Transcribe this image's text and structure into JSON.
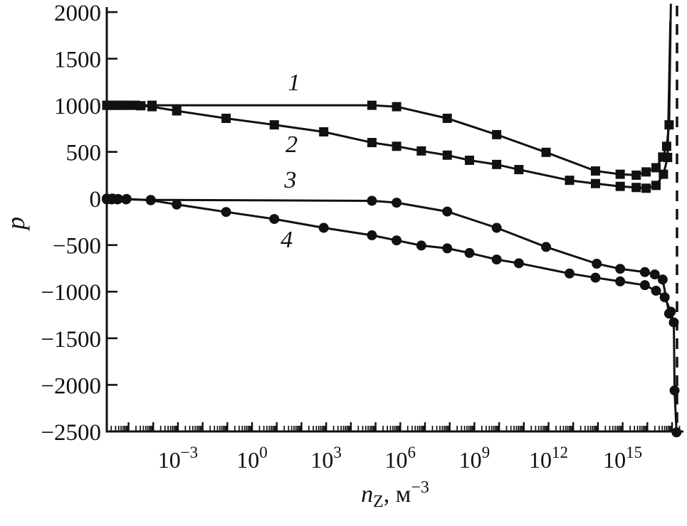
{
  "figure": {
    "ylabel": "p",
    "xlabel": {
      "variable": "n",
      "subscript": "Z",
      "unit_prefix": ", м",
      "unit_exponent": "−3"
    },
    "ink_color": "#111111",
    "background_color": "#ffffff"
  },
  "chart_data": {
    "type": "line",
    "title": "",
    "x_scale": "log10",
    "grid": "off",
    "legend": "none (curves labeled inline 1-4)",
    "x_axis": {
      "label": "n_Z, м^−3",
      "log_range": [
        -5.88,
        17.46
      ],
      "labeled_exponents": [
        -3,
        0,
        3,
        6,
        9,
        12,
        15
      ],
      "minor_ticks": "log decades with 2-9 subdivisions"
    },
    "y_axis": {
      "label": "p",
      "range": [
        -2500,
        2000
      ],
      "ticks": [
        2000,
        1500,
        1000,
        500,
        0,
        -500,
        -1000,
        -1500,
        -2000,
        -2500
      ]
    },
    "series": [
      {
        "label": "1",
        "marker": "square",
        "points_logx_y_marker": [
          [
            -5.88,
            1000,
            1
          ],
          [
            -5.68,
            1000,
            1
          ],
          [
            -5.45,
            1000,
            1
          ],
          [
            -5.12,
            1000,
            1
          ],
          [
            -4.72,
            1000,
            1
          ],
          [
            -4.05,
            1000,
            1
          ],
          [
            4.85,
            1000,
            1
          ],
          [
            5.85,
            985,
            1
          ],
          [
            7.9,
            860,
            1
          ],
          [
            9.9,
            685,
            1
          ],
          [
            11.9,
            495,
            1
          ],
          [
            13.9,
            295,
            1
          ],
          [
            14.9,
            260,
            1
          ],
          [
            15.55,
            250,
            1
          ],
          [
            15.95,
            285,
            1
          ],
          [
            16.35,
            330,
            1
          ],
          [
            16.62,
            445,
            1
          ],
          [
            16.78,
            560,
            1
          ],
          [
            16.88,
            790,
            1
          ],
          [
            16.95,
            2080,
            0
          ]
        ]
      },
      {
        "label": "2",
        "marker": "square",
        "points_logx_y_marker": [
          [
            -5.88,
            1000,
            1
          ],
          [
            -5.58,
            1000,
            1
          ],
          [
            -5.28,
            1000,
            1
          ],
          [
            -4.95,
            1000,
            1
          ],
          [
            -4.5,
            995,
            1
          ],
          [
            -4.05,
            985,
            1
          ],
          [
            -3.05,
            940,
            1
          ],
          [
            -1.05,
            860,
            1
          ],
          [
            0.9,
            790,
            1
          ],
          [
            2.9,
            715,
            1
          ],
          [
            4.85,
            600,
            1
          ],
          [
            5.85,
            560,
            1
          ],
          [
            6.85,
            510,
            1
          ],
          [
            7.9,
            465,
            1
          ],
          [
            8.8,
            410,
            1
          ],
          [
            9.9,
            365,
            1
          ],
          [
            10.8,
            310,
            1
          ],
          [
            12.85,
            195,
            1
          ],
          [
            13.9,
            160,
            1
          ],
          [
            14.9,
            130,
            1
          ],
          [
            15.55,
            118,
            1
          ],
          [
            15.95,
            110,
            1
          ],
          [
            16.35,
            140,
            1
          ],
          [
            16.65,
            260,
            1
          ],
          [
            16.82,
            440,
            1
          ],
          [
            16.93,
            1900,
            0
          ]
        ]
      },
      {
        "label": "3",
        "marker": "circle",
        "points_logx_y_marker": [
          [
            -5.88,
            -10,
            1
          ],
          [
            -5.68,
            -10,
            1
          ],
          [
            -5.45,
            -10,
            1
          ],
          [
            -5.1,
            -10,
            1
          ],
          [
            -4.1,
            -15,
            1
          ],
          [
            4.85,
            -25,
            1
          ],
          [
            5.85,
            -45,
            1
          ],
          [
            7.9,
            -140,
            1
          ],
          [
            9.9,
            -315,
            1
          ],
          [
            11.9,
            -520,
            1
          ],
          [
            13.95,
            -700,
            1
          ],
          [
            14.9,
            -755,
            1
          ],
          [
            15.9,
            -790,
            1
          ],
          [
            16.3,
            -815,
            1
          ],
          [
            16.62,
            -870,
            1
          ],
          [
            16.88,
            -1235,
            1
          ],
          [
            17.02,
            -1325,
            0
          ]
        ]
      },
      {
        "label": "4",
        "marker": "circle",
        "points_logx_y_marker": [
          [
            -5.88,
            0,
            1
          ],
          [
            -5.65,
            0,
            1
          ],
          [
            -5.42,
            -5,
            1
          ],
          [
            -5.08,
            -5,
            1
          ],
          [
            -4.1,
            -20,
            1
          ],
          [
            -3.05,
            -65,
            1
          ],
          [
            -1.05,
            -145,
            1
          ],
          [
            0.9,
            -220,
            1
          ],
          [
            2.9,
            -315,
            1
          ],
          [
            4.85,
            -395,
            1
          ],
          [
            5.85,
            -450,
            1
          ],
          [
            6.85,
            -505,
            1
          ],
          [
            7.9,
            -535,
            1
          ],
          [
            8.8,
            -585,
            1
          ],
          [
            9.9,
            -655,
            1
          ],
          [
            10.8,
            -695,
            1
          ],
          [
            12.85,
            -805,
            1
          ],
          [
            13.9,
            -850,
            1
          ],
          [
            14.9,
            -890,
            1
          ],
          [
            15.9,
            -930,
            1
          ],
          [
            16.35,
            -990,
            1
          ],
          [
            16.7,
            -1060,
            1
          ],
          [
            16.95,
            -1215,
            1
          ],
          [
            17.07,
            -1330,
            1
          ],
          [
            17.1,
            -2060,
            1
          ],
          [
            17.18,
            -2510,
            1
          ]
        ]
      }
    ],
    "annotations": {
      "curve_labels": [
        {
          "text": "1",
          "logx": 1.7,
          "y": 1240
        },
        {
          "text": "2",
          "logx": 1.6,
          "y": 570
        },
        {
          "text": "3",
          "logx": 1.55,
          "y": 195
        },
        {
          "text": "4",
          "logx": 1.4,
          "y": -445
        }
      ],
      "dashed_vline_logx": 17.2
    }
  }
}
